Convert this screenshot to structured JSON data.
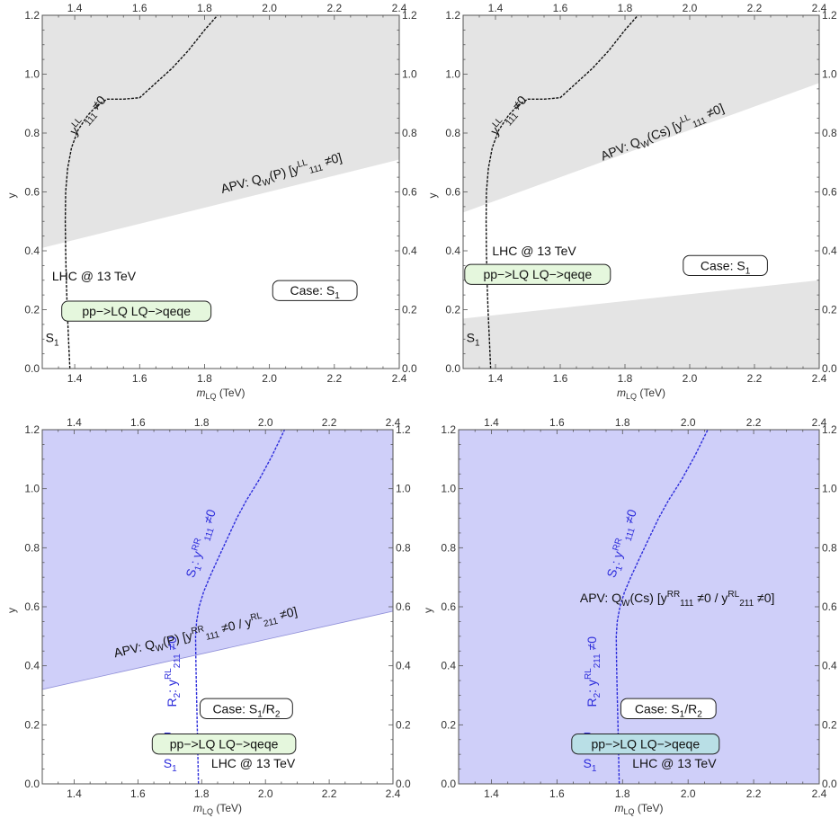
{
  "chart_data": [
    {
      "id": "p1",
      "type": "line",
      "xlabel": "m",
      "xlabel_sub": "LQ",
      "xlabel_unit": " (TeV)",
      "ylabel": "y",
      "xlim": [
        1.3,
        2.4
      ],
      "ylim": [
        0.0,
        1.2
      ],
      "xticks": [
        "1.4",
        "1.6",
        "1.8",
        "2.0",
        "2.2",
        "2.4"
      ],
      "yticks": [
        "0.0",
        "0.2",
        "0.4",
        "0.6",
        "0.8",
        "1.0",
        "1.2"
      ],
      "bg": "#ffffff",
      "regions": [
        {
          "color": "#e4e4e4",
          "opacity": 1,
          "poly": [
            [
              1.3,
              0.41
            ],
            [
              2.4,
              0.71
            ],
            [
              2.4,
              1.2
            ],
            [
              1.3,
              1.2
            ]
          ]
        }
      ],
      "series": [
        {
          "color": "#111111",
          "x": [
            1.385,
            1.381,
            1.377,
            1.374,
            1.372,
            1.371,
            1.372,
            1.378,
            1.39,
            1.41,
            1.44,
            1.47,
            1.5,
            1.55,
            1.6,
            1.65,
            1.7,
            1.75,
            1.8,
            1.84
          ],
          "y": [
            0.0,
            0.1,
            0.2,
            0.3,
            0.4,
            0.5,
            0.6,
            0.68,
            0.75,
            0.81,
            0.86,
            0.895,
            0.915,
            0.915,
            0.92,
            0.97,
            1.02,
            1.08,
            1.15,
            1.2
          ]
        }
      ],
      "annotations": [
        {
          "type": "text",
          "x": 1.31,
          "y": 0.09,
          "color": "#111111",
          "parts": [
            {
              "t": "S"
            },
            {
              "t": "1",
              "s": "sub"
            }
          ]
        },
        {
          "type": "text",
          "x": 1.33,
          "y": 0.3,
          "color": "#111111",
          "parts": [
            {
              "t": "LHC @ 13 TeV"
            }
          ]
        },
        {
          "type": "text",
          "x": 1.45,
          "y": 0.85,
          "rotate": -49,
          "color": "#111111",
          "parts": [
            {
              "t": "y"
            },
            {
              "t": "LL",
              "s": "sup"
            },
            {
              "t": "111",
              "s": "sub"
            },
            {
              "t": " ≠0"
            }
          ]
        },
        {
          "type": "text",
          "x": 2.04,
          "y": 0.65,
          "rotate": -15,
          "color": "#111111",
          "parts": [
            {
              "t": "APV: Q"
            },
            {
              "t": "W",
              "s": "sub"
            },
            {
              "t": "(P) [y"
            },
            {
              "t": "LL",
              "s": "sup"
            },
            {
              "t": "111",
              "s": "sub"
            },
            {
              "t": " ≠0]"
            }
          ]
        },
        {
          "type": "box",
          "x": 1.59,
          "y": 0.195,
          "w": 0.46,
          "h": 0.068,
          "fill": "#e5f7dd",
          "color": "#111111",
          "parts": [
            {
              "t": "pp−>LQ LQ−>qeqe"
            }
          ]
        },
        {
          "type": "box",
          "x": 2.14,
          "y": 0.265,
          "w": 0.26,
          "h": 0.068,
          "fill": "#ffffff",
          "color": "#111111",
          "parts": [
            {
              "t": "Case: S"
            },
            {
              "t": "1",
              "s": "sub"
            }
          ]
        }
      ]
    },
    {
      "id": "p2",
      "type": "line",
      "xlabel": "m",
      "xlabel_sub": "LQ",
      "xlabel_unit": " (TeV)",
      "ylabel": "y",
      "xlim": [
        1.3,
        2.4
      ],
      "ylim": [
        0.0,
        1.2
      ],
      "xticks": [
        "1.4",
        "1.6",
        "1.8",
        "2.0",
        "2.2",
        "2.4"
      ],
      "yticks": [
        "0.0",
        "0.2",
        "0.4",
        "0.6",
        "0.8",
        "1.0",
        "1.2"
      ],
      "bg": "#ffffff",
      "regions": [
        {
          "color": "#e4e4e4",
          "opacity": 1,
          "poly": [
            [
              1.3,
              0.53
            ],
            [
              2.4,
              0.97
            ],
            [
              2.4,
              1.2
            ],
            [
              1.3,
              1.2
            ]
          ]
        },
        {
          "color": "#e4e4e4",
          "opacity": 1,
          "poly": [
            [
              1.3,
              0.0
            ],
            [
              2.4,
              0.0
            ],
            [
              2.4,
              0.3
            ],
            [
              1.3,
              0.17
            ]
          ]
        }
      ],
      "series": [
        {
          "color": "#111111",
          "x": [
            1.385,
            1.381,
            1.377,
            1.374,
            1.372,
            1.371,
            1.372,
            1.378,
            1.39,
            1.41,
            1.44,
            1.47,
            1.5,
            1.55,
            1.6,
            1.65,
            1.7,
            1.75,
            1.8,
            1.84
          ],
          "y": [
            0.0,
            0.1,
            0.2,
            0.3,
            0.4,
            0.5,
            0.6,
            0.68,
            0.75,
            0.81,
            0.86,
            0.895,
            0.915,
            0.915,
            0.92,
            0.97,
            1.02,
            1.08,
            1.15,
            1.2
          ]
        }
      ],
      "annotations": [
        {
          "type": "text",
          "x": 1.31,
          "y": 0.09,
          "color": "#111111",
          "parts": [
            {
              "t": "S"
            },
            {
              "t": "1",
              "s": "sub"
            }
          ]
        },
        {
          "type": "text",
          "x": 1.39,
          "y": 0.385,
          "color": "#111111",
          "parts": [
            {
              "t": "LHC @ 13 TeV"
            }
          ]
        },
        {
          "type": "text",
          "x": 1.45,
          "y": 0.85,
          "rotate": -49,
          "color": "#111111",
          "parts": [
            {
              "t": "y"
            },
            {
              "t": "LL",
              "s": "sup"
            },
            {
              "t": "111",
              "s": "sub"
            },
            {
              "t": " ≠0"
            }
          ]
        },
        {
          "type": "text",
          "x": 1.92,
          "y": 0.79,
          "rotate": -22,
          "color": "#111111",
          "parts": [
            {
              "t": "APV: Q"
            },
            {
              "t": "W",
              "s": "sub"
            },
            {
              "t": "(Cs) [y"
            },
            {
              "t": "LL",
              "s": "sup"
            },
            {
              "t": "111",
              "s": "sub"
            },
            {
              "t": " ≠0]"
            }
          ]
        },
        {
          "type": "box",
          "x": 1.53,
          "y": 0.32,
          "w": 0.45,
          "h": 0.068,
          "fill": "#e5f7dd",
          "color": "#111111",
          "parts": [
            {
              "t": "pp−>LQ LQ−>qeqe"
            }
          ]
        },
        {
          "type": "box",
          "x": 2.11,
          "y": 0.35,
          "w": 0.26,
          "h": 0.068,
          "fill": "#ffffff",
          "color": "#111111",
          "parts": [
            {
              "t": "Case: S"
            },
            {
              "t": "1",
              "s": "sub"
            }
          ]
        }
      ]
    },
    {
      "id": "p3",
      "type": "line",
      "xlabel": "m",
      "xlabel_sub": "LQ",
      "xlabel_unit": " (TeV)",
      "ylabel": "y",
      "xlim": [
        1.3,
        2.4
      ],
      "ylim": [
        0.0,
        1.2
      ],
      "xticks": [
        "1.4",
        "1.6",
        "1.8",
        "2.0",
        "2.2",
        "2.4"
      ],
      "yticks": [
        "0.0",
        "0.2",
        "0.4",
        "0.6",
        "0.8",
        "1.0",
        "1.2"
      ],
      "bg": "#ffffff",
      "regions": [
        {
          "color": "#cfcff9",
          "opacity": 1,
          "poly": [
            [
              1.3,
              0.32
            ],
            [
              2.4,
              0.585
            ],
            [
              2.4,
              1.2
            ],
            [
              1.3,
              1.2
            ]
          ]
        }
      ],
      "series": [
        {
          "color": "#2d2ddb",
          "x": [
            1.79,
            1.788,
            1.786,
            1.784,
            1.782,
            1.781,
            1.784,
            1.792,
            1.806,
            1.825,
            1.85,
            1.88,
            1.91,
            1.94,
            1.98,
            2.02,
            2.06
          ],
          "y": [
            0.0,
            0.1,
            0.2,
            0.3,
            0.4,
            0.5,
            0.55,
            0.6,
            0.65,
            0.7,
            0.76,
            0.83,
            0.9,
            0.96,
            1.03,
            1.11,
            1.2
          ]
        }
      ],
      "annotations": [
        {
          "type": "text",
          "x": 1.68,
          "y": 0.055,
          "color": "#2d2ddb",
          "parts": [
            {
              "t": "S"
            },
            {
              "t": "1",
              "s": "sub"
            }
          ]
        },
        {
          "type": "text",
          "x": 1.68,
          "y": 0.145,
          "color": "#2d2ddb",
          "parts": [
            {
              "t": "R"
            },
            {
              "t": "2",
              "s": "sub"
            }
          ]
        },
        {
          "type": "text",
          "x": 1.83,
          "y": 0.055,
          "color": "#111111",
          "parts": [
            {
              "t": "LHC @ 13 TeV"
            }
          ]
        },
        {
          "type": "text",
          "x": 1.72,
          "y": 0.38,
          "rotate": -90,
          "color": "#2d2ddb",
          "parts": [
            {
              "t": "R"
            },
            {
              "t": "2",
              "s": "sub"
            },
            {
              "t": ": y"
            },
            {
              "t": "RL",
              "s": "sup"
            },
            {
              "t": "211",
              "s": "sub"
            },
            {
              "t": " ≠0"
            }
          ]
        },
        {
          "type": "text",
          "x": 1.81,
          "y": 0.81,
          "rotate": -72,
          "color": "#2d2ddb",
          "parts": [
            {
              "t": "S"
            },
            {
              "t": "1",
              "s": "sub"
            },
            {
              "t": ": y"
            },
            {
              "t": "RR",
              "s": "sup"
            },
            {
              "t": "111",
              "s": "sub"
            },
            {
              "t": " ≠0"
            }
          ]
        },
        {
          "type": "text",
          "x": 1.815,
          "y": 0.5,
          "rotate": -13,
          "color": "#111111",
          "parts": [
            {
              "t": "APV: Q"
            },
            {
              "t": "W",
              "s": "sub"
            },
            {
              "t": "(P) [y"
            },
            {
              "t": "RR",
              "s": "sup"
            },
            {
              "t": "111",
              "s": "sub"
            },
            {
              "t": " ≠0 / y"
            },
            {
              "t": "RL",
              "s": "sup"
            },
            {
              "t": "211",
              "s": "sub"
            },
            {
              "t": " ≠0]"
            }
          ]
        },
        {
          "type": "box",
          "x": 1.94,
          "y": 0.255,
          "w": 0.29,
          "h": 0.068,
          "fill": "#ffffff",
          "color": "#111111",
          "parts": [
            {
              "t": "Case: S"
            },
            {
              "t": "1",
              "s": "sub"
            },
            {
              "t": "/R"
            },
            {
              "t": "2",
              "s": "sub"
            }
          ]
        },
        {
          "type": "box",
          "x": 1.87,
          "y": 0.135,
          "w": 0.45,
          "h": 0.068,
          "fill": "#e5f7dd",
          "color": "#111111",
          "parts": [
            {
              "t": "pp−>LQ LQ−>qeqe"
            }
          ]
        }
      ]
    },
    {
      "id": "p4",
      "type": "line",
      "xlabel": "m",
      "xlabel_sub": "LQ",
      "xlabel_unit": " (TeV)",
      "ylabel": "y",
      "xlim": [
        1.3,
        2.4
      ],
      "ylim": [
        0.0,
        1.2
      ],
      "xticks": [
        "1.4",
        "1.6",
        "1.8",
        "2.0",
        "2.2",
        "2.4"
      ],
      "yticks": [
        "0.0",
        "0.2",
        "0.4",
        "0.6",
        "0.8",
        "1.0",
        "1.2"
      ],
      "bg": "#cfcff9",
      "regions": [],
      "series": [
        {
          "color": "#2d2ddb",
          "x": [
            1.79,
            1.788,
            1.786,
            1.784,
            1.782,
            1.781,
            1.784,
            1.792,
            1.806,
            1.825,
            1.85,
            1.88,
            1.91,
            1.94,
            1.98,
            2.02,
            2.06
          ],
          "y": [
            0.0,
            0.1,
            0.2,
            0.3,
            0.4,
            0.5,
            0.55,
            0.6,
            0.65,
            0.7,
            0.76,
            0.83,
            0.9,
            0.96,
            1.03,
            1.11,
            1.2
          ]
        }
      ],
      "annotations": [
        {
          "type": "text",
          "x": 1.68,
          "y": 0.055,
          "color": "#2d2ddb",
          "parts": [
            {
              "t": "S"
            },
            {
              "t": "1",
              "s": "sub"
            }
          ]
        },
        {
          "type": "text",
          "x": 1.68,
          "y": 0.145,
          "color": "#2d2ddb",
          "parts": [
            {
              "t": "R"
            },
            {
              "t": "2",
              "s": "sub"
            }
          ]
        },
        {
          "type": "text",
          "x": 1.83,
          "y": 0.055,
          "color": "#111111",
          "parts": [
            {
              "t": "LHC @ 13 TeV"
            }
          ]
        },
        {
          "type": "text",
          "x": 1.72,
          "y": 0.38,
          "rotate": -90,
          "color": "#2d2ddb",
          "parts": [
            {
              "t": "R"
            },
            {
              "t": "2",
              "s": "sub"
            },
            {
              "t": ": y"
            },
            {
              "t": "RL",
              "s": "sup"
            },
            {
              "t": "211",
              "s": "sub"
            },
            {
              "t": " ≠0"
            }
          ]
        },
        {
          "type": "text",
          "x": 1.81,
          "y": 0.81,
          "rotate": -72,
          "color": "#2d2ddb",
          "parts": [
            {
              "t": "S"
            },
            {
              "t": "1",
              "s": "sub"
            },
            {
              "t": ": y"
            },
            {
              "t": "RR",
              "s": "sup"
            },
            {
              "t": "111",
              "s": "sub"
            },
            {
              "t": " ≠0"
            }
          ]
        },
        {
          "type": "text",
          "x": 1.67,
          "y": 0.615,
          "color": "#111111",
          "parts": [
            {
              "t": "APV: Q"
            },
            {
              "t": "W",
              "s": "sub"
            },
            {
              "t": "(Cs) [y"
            },
            {
              "t": "RR",
              "s": "sup"
            },
            {
              "t": "111",
              "s": "sub"
            },
            {
              "t": " ≠0 / y"
            },
            {
              "t": "RL",
              "s": "sup"
            },
            {
              "t": "211",
              "s": "sub"
            },
            {
              "t": " ≠0]"
            }
          ]
        },
        {
          "type": "box",
          "x": 1.94,
          "y": 0.255,
          "w": 0.29,
          "h": 0.068,
          "fill": "#ffffff",
          "color": "#111111",
          "parts": [
            {
              "t": "Case: S"
            },
            {
              "t": "1",
              "s": "sub"
            },
            {
              "t": "/R"
            },
            {
              "t": "2",
              "s": "sub"
            }
          ]
        },
        {
          "type": "box",
          "x": 1.87,
          "y": 0.135,
          "w": 0.45,
          "h": 0.068,
          "fill": "#b9dfe6",
          "color": "#111111",
          "parts": [
            {
              "t": "pp−>LQ LQ−>qeqe"
            }
          ]
        }
      ]
    }
  ]
}
